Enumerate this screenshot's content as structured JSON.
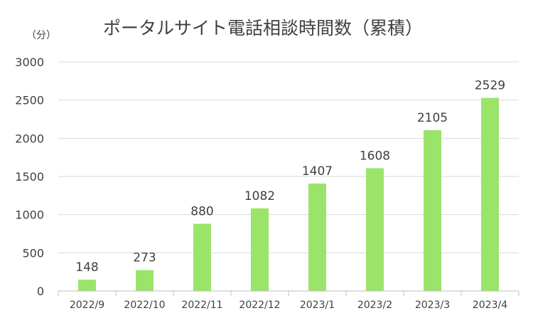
{
  "chart_data": {
    "type": "bar",
    "title": "ポータルサイト電話相談時間数（累積）",
    "ylabel": "（分）",
    "xlabel": "",
    "categories": [
      "2022/9",
      "2022/10",
      "2022/11",
      "2022/12",
      "2023/1",
      "2023/2",
      "2023/3",
      "2023/4"
    ],
    "values": [
      148,
      273,
      880,
      1082,
      1407,
      1608,
      2105,
      2529
    ],
    "ylim": [
      0,
      3000
    ],
    "yticks": [
      0,
      500,
      1000,
      1500,
      2000,
      2500,
      3000
    ],
    "grid": true,
    "legend": "none",
    "data_labels": true,
    "colors": {
      "bar": "#9be46a",
      "grid": "#d9d9d9",
      "axis": "#bfbfbf",
      "text": "#404040"
    }
  }
}
